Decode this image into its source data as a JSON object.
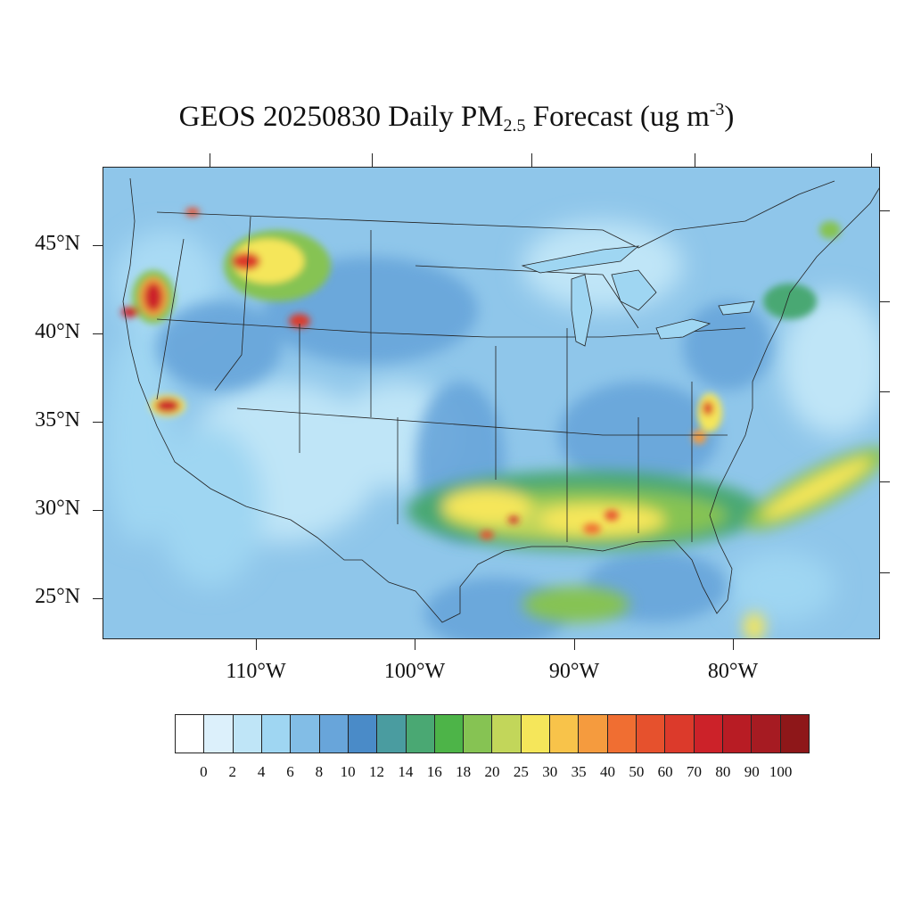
{
  "title": {
    "prefix": "GEOS 20250830 Daily PM",
    "sub": "2.5",
    "mid": " Forecast (ug m",
    "sup": "-3",
    "suffix": ")"
  },
  "lat_labels": [
    "45°N",
    "40°N",
    "35°N",
    "30°N",
    "25°N"
  ],
  "lon_labels": [
    "110°W",
    "100°W",
    "90°W",
    "80°W"
  ],
  "legend": {
    "labels": [
      "0",
      "2",
      "4",
      "6",
      "8",
      "10",
      "12",
      "14",
      "16",
      "18",
      "20",
      "25",
      "30",
      "35",
      "40",
      "50",
      "60",
      "70",
      "80",
      "90",
      "100"
    ],
    "colors": [
      "#ffffff",
      "#dcf0fb",
      "#bfe5f7",
      "#9fd6f2",
      "#82bde6",
      "#68a5da",
      "#4a8bc8",
      "#4a9ca0",
      "#4aa873",
      "#4db448",
      "#86c353",
      "#c2d65a",
      "#f5e65a",
      "#f8c34a",
      "#f59b3e",
      "#f06e32",
      "#e6512d",
      "#dc3a2b",
      "#cc2229",
      "#b81c24",
      "#a61b22",
      "#8e1719"
    ]
  },
  "colors": {
    "ocean": "#9fd6f2",
    "land": "#82bde6",
    "borders": "#222222"
  }
}
